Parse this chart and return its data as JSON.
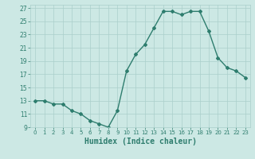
{
  "x": [
    0,
    1,
    2,
    3,
    4,
    5,
    6,
    7,
    8,
    9,
    10,
    11,
    12,
    13,
    14,
    15,
    16,
    17,
    18,
    19,
    20,
    21,
    22,
    23
  ],
  "y": [
    13,
    13,
    12.5,
    12.5,
    11.5,
    11,
    10,
    9.5,
    9,
    11.5,
    17.5,
    20,
    21.5,
    24,
    26.5,
    26.5,
    26,
    26.5,
    26.5,
    23.5,
    19.5,
    18,
    17.5,
    16.5
  ],
  "line_color": "#2e7d6e",
  "marker": "D",
  "marker_size": 2,
  "bg_color": "#cce8e4",
  "grid_color": "#aacfcb",
  "tick_color": "#2e7d6e",
  "xlabel": "Humidex (Indice chaleur)",
  "xlabel_fontsize": 7,
  "xlim": [
    -0.5,
    23.5
  ],
  "ylim": [
    9,
    27.5
  ],
  "yticks": [
    9,
    11,
    13,
    15,
    17,
    19,
    21,
    23,
    25,
    27
  ],
  "xtick_labels": [
    "0",
    "1",
    "2",
    "3",
    "4",
    "5",
    "6",
    "7",
    "8",
    "9",
    "10",
    "11",
    "12",
    "13",
    "14",
    "15",
    "16",
    "17",
    "18",
    "19",
    "20",
    "21",
    "22",
    "23"
  ],
  "linewidth": 1.0
}
